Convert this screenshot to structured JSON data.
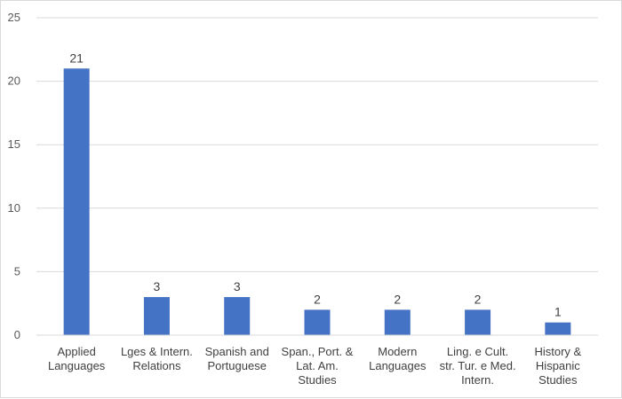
{
  "chart_data": {
    "type": "bar",
    "title": "",
    "xlabel": "",
    "ylabel": "",
    "ylim": [
      0,
      25
    ],
    "yticks": [
      0,
      5,
      10,
      15,
      20,
      25
    ],
    "grid": true,
    "bar_color": "#4472c4",
    "gridline_color": "#d9d9d9",
    "categories": [
      [
        "Applied",
        "Languages"
      ],
      [
        "Lges & Intern.",
        "Relations"
      ],
      [
        "Spanish and",
        "Portuguese"
      ],
      [
        "Span., Port. &",
        "Lat. Am.",
        "Studies"
      ],
      [
        "Modern",
        "Languages"
      ],
      [
        "Ling. e Cult.",
        "str. Tur. e Med.",
        "Intern."
      ],
      [
        "History &",
        "Hispanic",
        "Studies"
      ]
    ],
    "values": [
      21,
      3,
      3,
      2,
      2,
      2,
      1
    ],
    "data_labels": [
      "21",
      "3",
      "3",
      "2",
      "2",
      "2",
      "1"
    ]
  }
}
